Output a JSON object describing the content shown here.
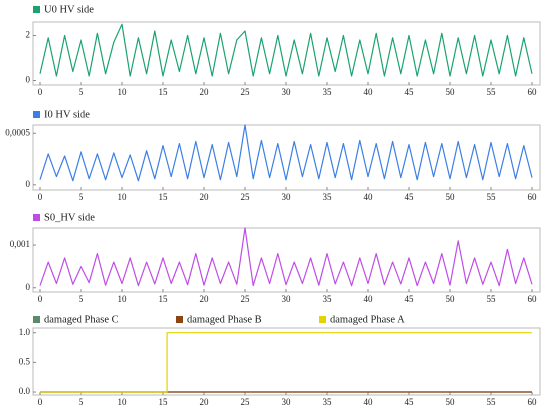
{
  "chart_data": [
    {
      "type": "line",
      "x": [
        0,
        1,
        2,
        3,
        4,
        5,
        6,
        7,
        8,
        9,
        10,
        11,
        12,
        13,
        14,
        15,
        16,
        17,
        18,
        19,
        20,
        21,
        22,
        23,
        24,
        25,
        26,
        27,
        28,
        29,
        30,
        31,
        32,
        33,
        34,
        35,
        36,
        37,
        38,
        39,
        40,
        41,
        42,
        43,
        44,
        45,
        46,
        47,
        48,
        49,
        50,
        51,
        52,
        53,
        54,
        55,
        56,
        57,
        58,
        59,
        60
      ],
      "series": [
        {
          "name": "U0 HV side",
          "color": "#1aa36f",
          "values": [
            0.3,
            1.9,
            0.2,
            2.0,
            0.4,
            1.8,
            0.2,
            2.1,
            0.3,
            1.7,
            2.5,
            0.2,
            1.9,
            0.3,
            2.2,
            0.2,
            1.8,
            0.4,
            2.0,
            0.3,
            1.9,
            0.2,
            2.1,
            0.3,
            1.8,
            2.2,
            0.2,
            1.9,
            0.3,
            2.0,
            0.2,
            1.8,
            0.3,
            2.1,
            0.2,
            1.9,
            0.4,
            2.0,
            0.2,
            1.8,
            0.3,
            2.1,
            0.2,
            1.9,
            0.3,
            2.0,
            0.2,
            1.8,
            0.3,
            2.1,
            0.2,
            1.9,
            0.3,
            2.0,
            0.2,
            1.8,
            0.3,
            2.0,
            0.2,
            1.9,
            0.3
          ]
        }
      ],
      "xlim": [
        0,
        60
      ],
      "xticks": [
        0,
        5,
        10,
        15,
        20,
        25,
        30,
        35,
        40,
        45,
        50,
        55,
        60
      ],
      "ylim": [
        -0.2,
        2.6
      ],
      "yticks": [
        0,
        2
      ]
    },
    {
      "type": "line",
      "x": [
        0,
        1,
        2,
        3,
        4,
        5,
        6,
        7,
        8,
        9,
        10,
        11,
        12,
        13,
        14,
        15,
        16,
        17,
        18,
        19,
        20,
        21,
        22,
        23,
        24,
        25,
        26,
        27,
        28,
        29,
        30,
        31,
        32,
        33,
        34,
        35,
        36,
        37,
        38,
        39,
        40,
        41,
        42,
        43,
        44,
        45,
        46,
        47,
        48,
        49,
        50,
        51,
        52,
        53,
        54,
        55,
        56,
        57,
        58,
        59,
        60
      ],
      "series": [
        {
          "name": "I0 HV side",
          "color": "#3b7fe6",
          "values": [
            5e-05,
            0.0003,
            8e-05,
            0.00028,
            4e-05,
            0.00032,
            6e-05,
            0.0003,
            5e-05,
            0.00031,
            7e-05,
            0.00029,
            4e-05,
            0.00033,
            6e-05,
            0.00038,
            8e-05,
            0.0004,
            6e-05,
            0.00042,
            7e-05,
            0.00039,
            5e-05,
            0.00041,
            8e-05,
            0.00058,
            6e-05,
            0.00043,
            7e-05,
            0.0004,
            5e-05,
            0.00042,
            8e-05,
            0.00039,
            6e-05,
            0.00041,
            7e-05,
            0.0004,
            5e-05,
            0.00043,
            8e-05,
            0.0004,
            6e-05,
            0.00042,
            7e-05,
            0.00039,
            5e-05,
            0.00041,
            8e-05,
            0.0004,
            6e-05,
            0.00042,
            7e-05,
            0.00039,
            5e-05,
            0.00041,
            8e-05,
            0.0004,
            6e-05,
            0.00038,
            7e-05
          ]
        }
      ],
      "xlim": [
        0,
        60
      ],
      "xticks": [
        0,
        5,
        10,
        15,
        20,
        25,
        30,
        35,
        40,
        45,
        50,
        55,
        60
      ],
      "ylim": [
        -5e-05,
        0.00058
      ],
      "yticks": [
        0,
        {
          "value": 0.0005,
          "label": "0,0005"
        }
      ]
    },
    {
      "type": "line",
      "x": [
        0,
        1,
        2,
        3,
        4,
        5,
        6,
        7,
        8,
        9,
        10,
        11,
        12,
        13,
        14,
        15,
        16,
        17,
        18,
        19,
        20,
        21,
        22,
        23,
        24,
        25,
        26,
        27,
        28,
        29,
        30,
        31,
        32,
        33,
        34,
        35,
        36,
        37,
        38,
        39,
        40,
        41,
        42,
        43,
        44,
        45,
        46,
        47,
        48,
        49,
        50,
        51,
        52,
        53,
        54,
        55,
        56,
        57,
        58,
        59,
        60
      ],
      "series": [
        {
          "name": "S0_HV side",
          "color": "#c04ce8",
          "values": [
            5e-05,
            0.0006,
            0.0001,
            0.0007,
            8e-05,
            0.0005,
            0.00012,
            0.0008,
            6e-05,
            0.0006,
            0.0001,
            0.0007,
            5e-05,
            0.0006,
            9e-05,
            0.0007,
            0.0001,
            0.0006,
            7e-05,
            0.0008,
            6e-05,
            0.0007,
            0.0001,
            0.0006,
            8e-05,
            0.0014,
            5e-05,
            0.0007,
            0.0001,
            0.0008,
            7e-05,
            0.0006,
            0.0001,
            0.0007,
            6e-05,
            0.0008,
            9e-05,
            0.0006,
            5e-05,
            0.0007,
            0.0001,
            0.0008,
            7e-05,
            0.0006,
            9e-05,
            0.0007,
            5e-05,
            0.0006,
            0.0001,
            0.0008,
            6e-05,
            0.0011,
            0.0001,
            0.0007,
            8e-05,
            0.0006,
            5e-05,
            0.0009,
            0.0001,
            0.0007,
            8e-05
          ]
        }
      ],
      "xlim": [
        0,
        60
      ],
      "xticks": [
        0,
        5,
        10,
        15,
        20,
        25,
        30,
        35,
        40,
        45,
        50,
        55,
        60
      ],
      "ylim": [
        -0.0001,
        0.0014
      ],
      "yticks": [
        0,
        {
          "value": 0.001,
          "label": "0,001"
        }
      ]
    },
    {
      "type": "line",
      "x": [
        0,
        15.5,
        15.5,
        60
      ],
      "series": [
        {
          "name": "damaged Phase C",
          "color": "#5a8a6a",
          "values": [
            0,
            0,
            0,
            0
          ]
        },
        {
          "name": "damaged Phase B",
          "color": "#8b4513",
          "values": [
            0,
            0,
            0,
            0
          ]
        },
        {
          "name": "damaged Phase A",
          "color": "#e6d200",
          "values": [
            0,
            0,
            1,
            1
          ]
        }
      ],
      "xlim": [
        0,
        60
      ],
      "xticks": [
        0,
        5,
        10,
        15,
        20,
        25,
        30,
        35,
        40,
        45,
        50,
        55,
        60
      ],
      "ylim": [
        -0.05,
        1.08
      ],
      "yticks": [
        {
          "value": 0,
          "label": "0.0"
        },
        {
          "value": 0.5,
          "label": "0.5"
        },
        {
          "value": 1,
          "label": "1.0"
        }
      ]
    }
  ]
}
